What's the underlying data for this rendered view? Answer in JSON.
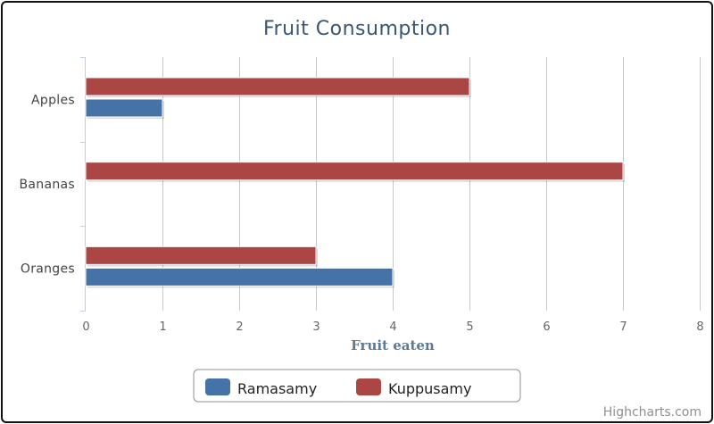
{
  "chart_data": {
    "type": "bar",
    "orientation": "horizontal",
    "title": "Fruit Consumption",
    "categories": [
      "Apples",
      "Bananas",
      "Oranges"
    ],
    "series": [
      {
        "name": "Ramasamy",
        "color": "#4572a7",
        "values": [
          1,
          0,
          4
        ]
      },
      {
        "name": "Kuppusamy",
        "color": "#aa4643",
        "values": [
          5,
          7,
          3
        ]
      }
    ],
    "xlim": [
      0,
      8
    ],
    "ticks": [
      "0",
      "1",
      "2",
      "3",
      "4",
      "5",
      "6",
      "7",
      "8"
    ],
    "value_axis_label": "Fruit eaten",
    "grid": true,
    "legend_position": "bottom-center"
  },
  "credits": "Highcharts.com"
}
